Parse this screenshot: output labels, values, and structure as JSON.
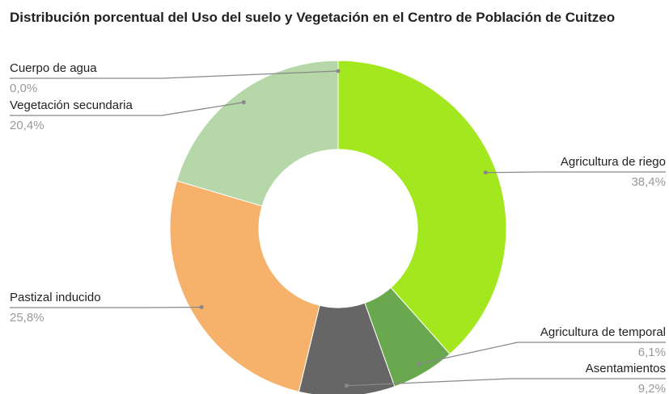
{
  "chart_data": {
    "type": "donut",
    "title": "Distribución porcentual del Uso del suelo y Vegetación en el Centro de Población de Cuitzeo",
    "categories": [
      "Agricultura de riego",
      "Agricultura de temporal",
      "Asentamientos",
      "Pastizal inducido",
      "Vegetación secundaria",
      "Cuerpo de agua"
    ],
    "values": [
      38.4,
      6.1,
      9.2,
      25.8,
      20.4,
      0.0
    ],
    "value_labels": [
      "38,4%",
      "6,1%",
      "9,2%",
      "25,8%",
      "20,4%",
      "0,0%"
    ],
    "colors": [
      "#a3e81f",
      "#6aa84f",
      "#666666",
      "#f6b26b",
      "#b6d7a8",
      "#3d85c6"
    ]
  }
}
